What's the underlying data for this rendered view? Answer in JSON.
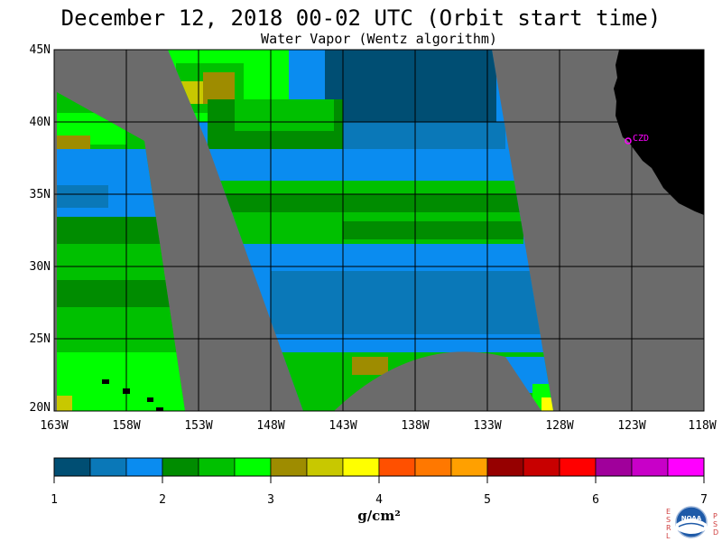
{
  "header": {
    "title": "December 12, 2018  00-02 UTC  (Orbit start time)",
    "subtitle": "Water Vapor (Wentz algorithm)"
  },
  "map": {
    "lat_labels": [
      "45N",
      "40N",
      "35N",
      "30N",
      "25N",
      "20N"
    ],
    "lon_labels": [
      "163W",
      "158W",
      "153W",
      "148W",
      "143W",
      "138W",
      "133W",
      "128W",
      "123W",
      "118W"
    ],
    "station_label": "CZD",
    "colors": {
      "no_data": "#6b6b6b",
      "land": "#000000",
      "grid": "#000000",
      "station": "#ff00ff"
    }
  },
  "colorbar": {
    "ticks": [
      "1",
      "2",
      "3",
      "4",
      "5",
      "6",
      "7"
    ],
    "units": "g/cm²",
    "colors": [
      "#004e73",
      "#0a78b8",
      "#0a8cf0",
      "#008c00",
      "#00c000",
      "#00ff00",
      "#9e8c00",
      "#c8c800",
      "#ffff00",
      "#ff5000",
      "#ff7800",
      "#ffa000",
      "#960000",
      "#c80000",
      "#ff0000",
      "#a0009b",
      "#c800c8",
      "#ff00ff"
    ]
  },
  "logo": {
    "left_letters": "ESRL",
    "right_letters": "PSD",
    "name": "NOAA"
  }
}
